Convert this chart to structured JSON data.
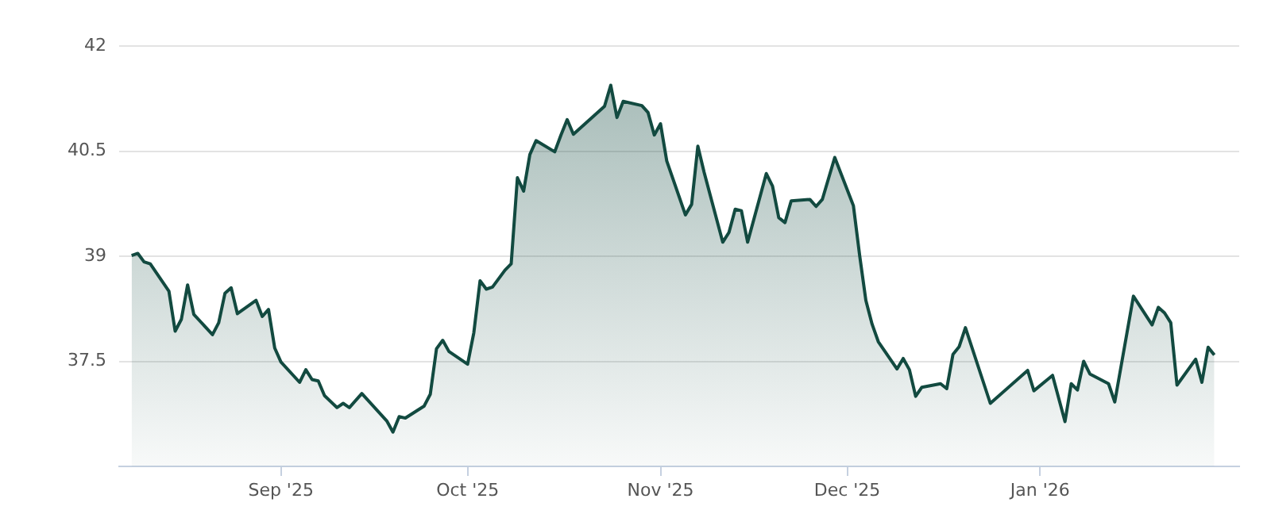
{
  "chart_data": {
    "type": "area",
    "x": [
      "2025-08-08",
      "2025-08-09",
      "2025-08-10",
      "2025-08-11",
      "2025-08-14",
      "2025-08-15",
      "2025-08-16",
      "2025-08-17",
      "2025-08-18",
      "2025-08-21",
      "2025-08-22",
      "2025-08-23",
      "2025-08-24",
      "2025-08-25",
      "2025-08-28",
      "2025-08-29",
      "2025-08-30",
      "2025-08-31",
      "2025-09-01",
      "2025-09-04",
      "2025-09-05",
      "2025-09-06",
      "2025-09-07",
      "2025-09-08",
      "2025-09-10",
      "2025-09-11",
      "2025-09-12",
      "2025-09-14",
      "2025-09-18",
      "2025-09-19",
      "2025-09-20",
      "2025-09-21",
      "2025-09-24",
      "2025-09-25",
      "2025-09-26",
      "2025-09-27",
      "2025-09-28",
      "2025-10-01",
      "2025-10-02",
      "2025-10-03",
      "2025-10-04",
      "2025-10-05",
      "2025-10-07",
      "2025-10-08",
      "2025-10-09",
      "2025-10-10",
      "2025-10-11",
      "2025-10-12",
      "2025-10-15",
      "2025-10-16",
      "2025-10-17",
      "2025-10-18",
      "2025-10-23",
      "2025-10-24",
      "2025-10-25",
      "2025-10-26",
      "2025-10-29",
      "2025-10-30",
      "2025-10-31",
      "2025-11-01",
      "2025-11-02",
      "2025-11-05",
      "2025-11-06",
      "2025-11-07",
      "2025-11-08",
      "2025-11-11",
      "2025-11-12",
      "2025-11-13",
      "2025-11-14",
      "2025-11-15",
      "2025-11-18",
      "2025-11-19",
      "2025-11-20",
      "2025-11-21",
      "2025-11-22",
      "2025-11-25",
      "2025-11-26",
      "2025-11-27",
      "2025-11-29",
      "2025-12-02",
      "2025-12-03",
      "2025-12-04",
      "2025-12-05",
      "2025-12-06",
      "2025-12-09",
      "2025-12-10",
      "2025-12-11",
      "2025-12-12",
      "2025-12-13",
      "2025-12-16",
      "2025-12-17",
      "2025-12-18",
      "2025-12-19",
      "2025-12-20",
      "2025-12-24",
      "2025-12-30",
      "2025-12-31",
      "2026-01-03",
      "2026-01-05",
      "2026-01-06",
      "2026-01-07",
      "2026-01-08",
      "2026-01-09",
      "2026-01-12",
      "2026-01-13",
      "2026-01-16",
      "2026-01-19",
      "2026-01-20",
      "2026-01-21",
      "2026-01-22",
      "2026-01-23",
      "2026-01-26",
      "2026-01-27",
      "2026-01-28",
      "2026-01-29"
    ],
    "series": [
      {
        "color": "#124a40",
        "values": [
          39.01,
          39.04,
          38.92,
          38.89,
          38.5,
          37.93,
          38.1,
          38.59,
          38.17,
          37.88,
          38.05,
          38.47,
          38.55,
          38.18,
          38.37,
          38.14,
          38.24,
          37.69,
          37.49,
          37.2,
          37.38,
          37.24,
          37.22,
          37.01,
          36.84,
          36.9,
          36.84,
          37.04,
          36.65,
          36.49,
          36.71,
          36.69,
          36.86,
          37.03,
          37.68,
          37.8,
          37.64,
          37.46,
          37.91,
          38.65,
          38.53,
          38.56,
          38.8,
          38.89,
          40.12,
          39.93,
          40.45,
          40.65,
          40.49,
          40.73,
          40.95,
          40.74,
          41.14,
          41.44,
          40.98,
          41.21,
          41.15,
          41.05,
          40.73,
          40.89,
          40.36,
          39.59,
          39.74,
          40.57,
          40.2,
          39.2,
          39.34,
          39.67,
          39.65,
          39.2,
          40.18,
          40.0,
          39.55,
          39.48,
          39.79,
          39.81,
          39.71,
          39.81,
          40.41,
          39.72,
          39.01,
          38.37,
          38.03,
          37.78,
          37.39,
          37.54,
          37.38,
          37.0,
          37.13,
          37.18,
          37.11,
          37.6,
          37.71,
          37.98,
          36.9,
          37.37,
          37.08,
          37.3,
          36.64,
          37.18,
          37.09,
          37.5,
          37.32,
          37.18,
          36.92,
          38.43,
          38.02,
          38.27,
          38.19,
          38.05,
          37.16,
          37.53,
          37.2,
          37.7,
          37.59
        ]
      }
    ],
    "xlim": [
      "2025-08-06",
      "2026-02-02"
    ],
    "xticks": [
      {
        "value": "2025-09-01",
        "label": "Sep '25"
      },
      {
        "value": "2025-10-01",
        "label": "Oct '25"
      },
      {
        "value": "2025-11-01",
        "label": "Nov '25"
      },
      {
        "value": "2025-12-01",
        "label": "Dec '25"
      },
      {
        "value": "2026-01-01",
        "label": "Jan '26"
      }
    ],
    "ylim": [
      36,
      42
    ],
    "yticks": [
      37.5,
      39,
      40.5,
      42
    ],
    "grid": "y",
    "legend": false,
    "marker": "none",
    "line_style": "solid"
  }
}
